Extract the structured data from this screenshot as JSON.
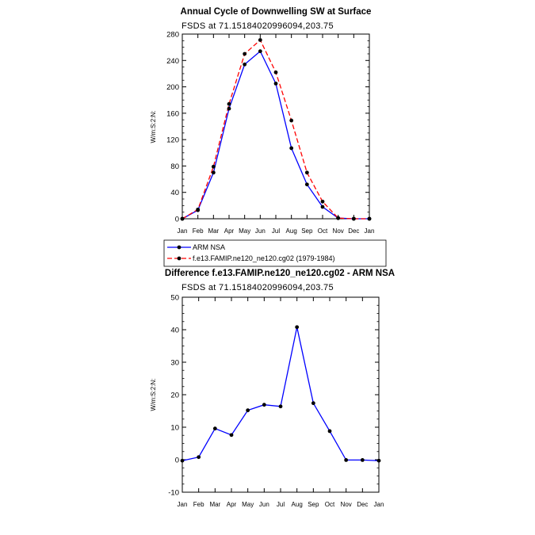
{
  "months": [
    "Jan",
    "Feb",
    "Mar",
    "Apr",
    "May",
    "Jun",
    "Jul",
    "Aug",
    "Sep",
    "Oct",
    "Nov",
    "Dec",
    "Jan"
  ],
  "chart_data": [
    {
      "type": "line",
      "title": "Annual Cycle of Downwelling SW at Surface",
      "subtitle": "FSDS at 71.15184020996094,203.75",
      "ylabel": "W/m:S:2:N:",
      "xlabel": "",
      "ylim": [
        0,
        280
      ],
      "yticks": [
        0,
        40,
        80,
        120,
        160,
        200,
        240,
        280
      ],
      "grid": false,
      "legend_position": "bottom",
      "categories": [
        "Jan",
        "Feb",
        "Mar",
        "Apr",
        "May",
        "Jun",
        "Jul",
        "Aug",
        "Sep",
        "Oct",
        "Nov",
        "Dec",
        "Jan"
      ],
      "series": [
        {
          "name": "ARM NSA",
          "color": "#0000ff",
          "dash": "solid",
          "values": [
            0,
            13,
            70,
            167,
            234,
            254,
            205,
            107,
            52,
            18,
            1,
            0,
            0
          ]
        },
        {
          "name": "f.e13.FAMIP.ne120_ne120.cg02 (1979-1984)",
          "color": "#ff0000",
          "dash": "dashed",
          "values": [
            0,
            14,
            79,
            174,
            250,
            271,
            222,
            149,
            70,
            26,
            1,
            0,
            0
          ]
        }
      ]
    },
    {
      "type": "line",
      "title": "Difference f.e13.FAMIP.ne120_ne120.cg02 - ARM NSA",
      "subtitle": "FSDS at 71.15184020996094,203.75",
      "ylabel": "W/m:S:2:N:",
      "xlabel": "",
      "ylim": [
        -10,
        50
      ],
      "yticks": [
        -10,
        0,
        10,
        20,
        30,
        40,
        50
      ],
      "grid": false,
      "categories": [
        "Jan",
        "Feb",
        "Mar",
        "Apr",
        "May",
        "Jun",
        "Jul",
        "Aug",
        "Sep",
        "Oct",
        "Nov",
        "Dec",
        "Jan"
      ],
      "series": [
        {
          "name": "Difference",
          "color": "#0000ff",
          "dash": "solid",
          "values": [
            -0.3,
            0.8,
            9.6,
            7.6,
            15.2,
            16.9,
            16.4,
            40.8,
            17.4,
            8.8,
            -0.1,
            -0.1,
            -0.3
          ]
        }
      ]
    }
  ]
}
